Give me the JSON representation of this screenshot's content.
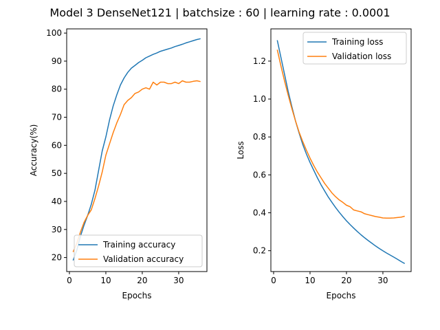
{
  "figure": {
    "title": "Model 3 DenseNet121 | batchsize : 60 | learning rate : 0.0001"
  },
  "chart_data": [
    {
      "type": "line",
      "title": "",
      "xlabel": "Epochs",
      "ylabel": "Accuracy(%)",
      "xlim": [
        -0.75,
        37.75
      ],
      "ylim": [
        15,
        101.5
      ],
      "xticks": [
        0,
        10,
        20,
        30
      ],
      "yticks": [
        20,
        30,
        40,
        50,
        60,
        70,
        80,
        90,
        100
      ],
      "grid": false,
      "legend": "lower-right",
      "x": [
        1,
        2,
        3,
        4,
        5,
        6,
        7,
        8,
        9,
        10,
        11,
        12,
        13,
        14,
        15,
        16,
        17,
        18,
        19,
        20,
        21,
        22,
        23,
        24,
        25,
        26,
        27,
        28,
        29,
        30,
        31,
        32,
        33,
        34,
        35,
        36
      ],
      "series": [
        {
          "name": "Training accuracy",
          "color": "#1f77b4",
          "values": [
            19,
            22.5,
            27.5,
            31.5,
            35,
            39,
            44,
            51,
            58,
            63,
            69,
            74,
            78,
            81.5,
            84,
            86,
            87.5,
            88.5,
            89.5,
            90.3,
            91.2,
            91.8,
            92.4,
            92.9,
            93.5,
            93.9,
            94.3,
            94.7,
            95.2,
            95.6,
            96,
            96.5,
            96.9,
            97.3,
            97.7,
            98
          ]
        },
        {
          "name": "Validation accuracy",
          "color": "#ff7f0e",
          "values": [
            22,
            25,
            29,
            32.5,
            35,
            37,
            41,
            45.5,
            50.5,
            56.5,
            60.5,
            64.5,
            68,
            71,
            74.5,
            76,
            77,
            78.5,
            79,
            80,
            80.5,
            80,
            82.5,
            81.5,
            82.5,
            82.5,
            82,
            82,
            82.5,
            82,
            83,
            82.5,
            82.5,
            82.8,
            83,
            82.7
          ]
        }
      ]
    },
    {
      "type": "line",
      "title": "",
      "xlabel": "Epochs",
      "ylabel": "Loss",
      "xlim": [
        -0.75,
        37.75
      ],
      "ylim": [
        0.09,
        1.37
      ],
      "xticks": [
        0,
        10,
        20,
        30
      ],
      "yticks": [
        0.2,
        0.4,
        0.6,
        0.8,
        1.0,
        1.2
      ],
      "grid": false,
      "legend": "upper-right",
      "x": [
        1,
        2,
        3,
        4,
        5,
        6,
        7,
        8,
        9,
        10,
        11,
        12,
        13,
        14,
        15,
        16,
        17,
        18,
        19,
        20,
        21,
        22,
        23,
        24,
        25,
        26,
        27,
        28,
        29,
        30,
        31,
        32,
        33,
        34,
        35,
        36
      ],
      "series": [
        {
          "name": "Training loss",
          "color": "#1f77b4",
          "values": [
            1.31,
            1.22,
            1.13,
            1.04,
            0.96,
            0.885,
            0.82,
            0.76,
            0.71,
            0.665,
            0.625,
            0.585,
            0.548,
            0.515,
            0.483,
            0.455,
            0.428,
            0.403,
            0.38,
            0.358,
            0.338,
            0.319,
            0.301,
            0.284,
            0.268,
            0.253,
            0.239,
            0.225,
            0.212,
            0.2,
            0.188,
            0.177,
            0.166,
            0.155,
            0.143,
            0.132
          ]
        },
        {
          "name": "Validation loss",
          "color": "#ff7f0e",
          "values": [
            1.26,
            1.175,
            1.095,
            1.02,
            0.95,
            0.885,
            0.825,
            0.775,
            0.73,
            0.688,
            0.65,
            0.615,
            0.585,
            0.555,
            0.53,
            0.505,
            0.485,
            0.468,
            0.455,
            0.44,
            0.432,
            0.415,
            0.41,
            0.405,
            0.395,
            0.39,
            0.385,
            0.38,
            0.377,
            0.373,
            0.372,
            0.372,
            0.373,
            0.375,
            0.377,
            0.382
          ]
        }
      ]
    }
  ]
}
